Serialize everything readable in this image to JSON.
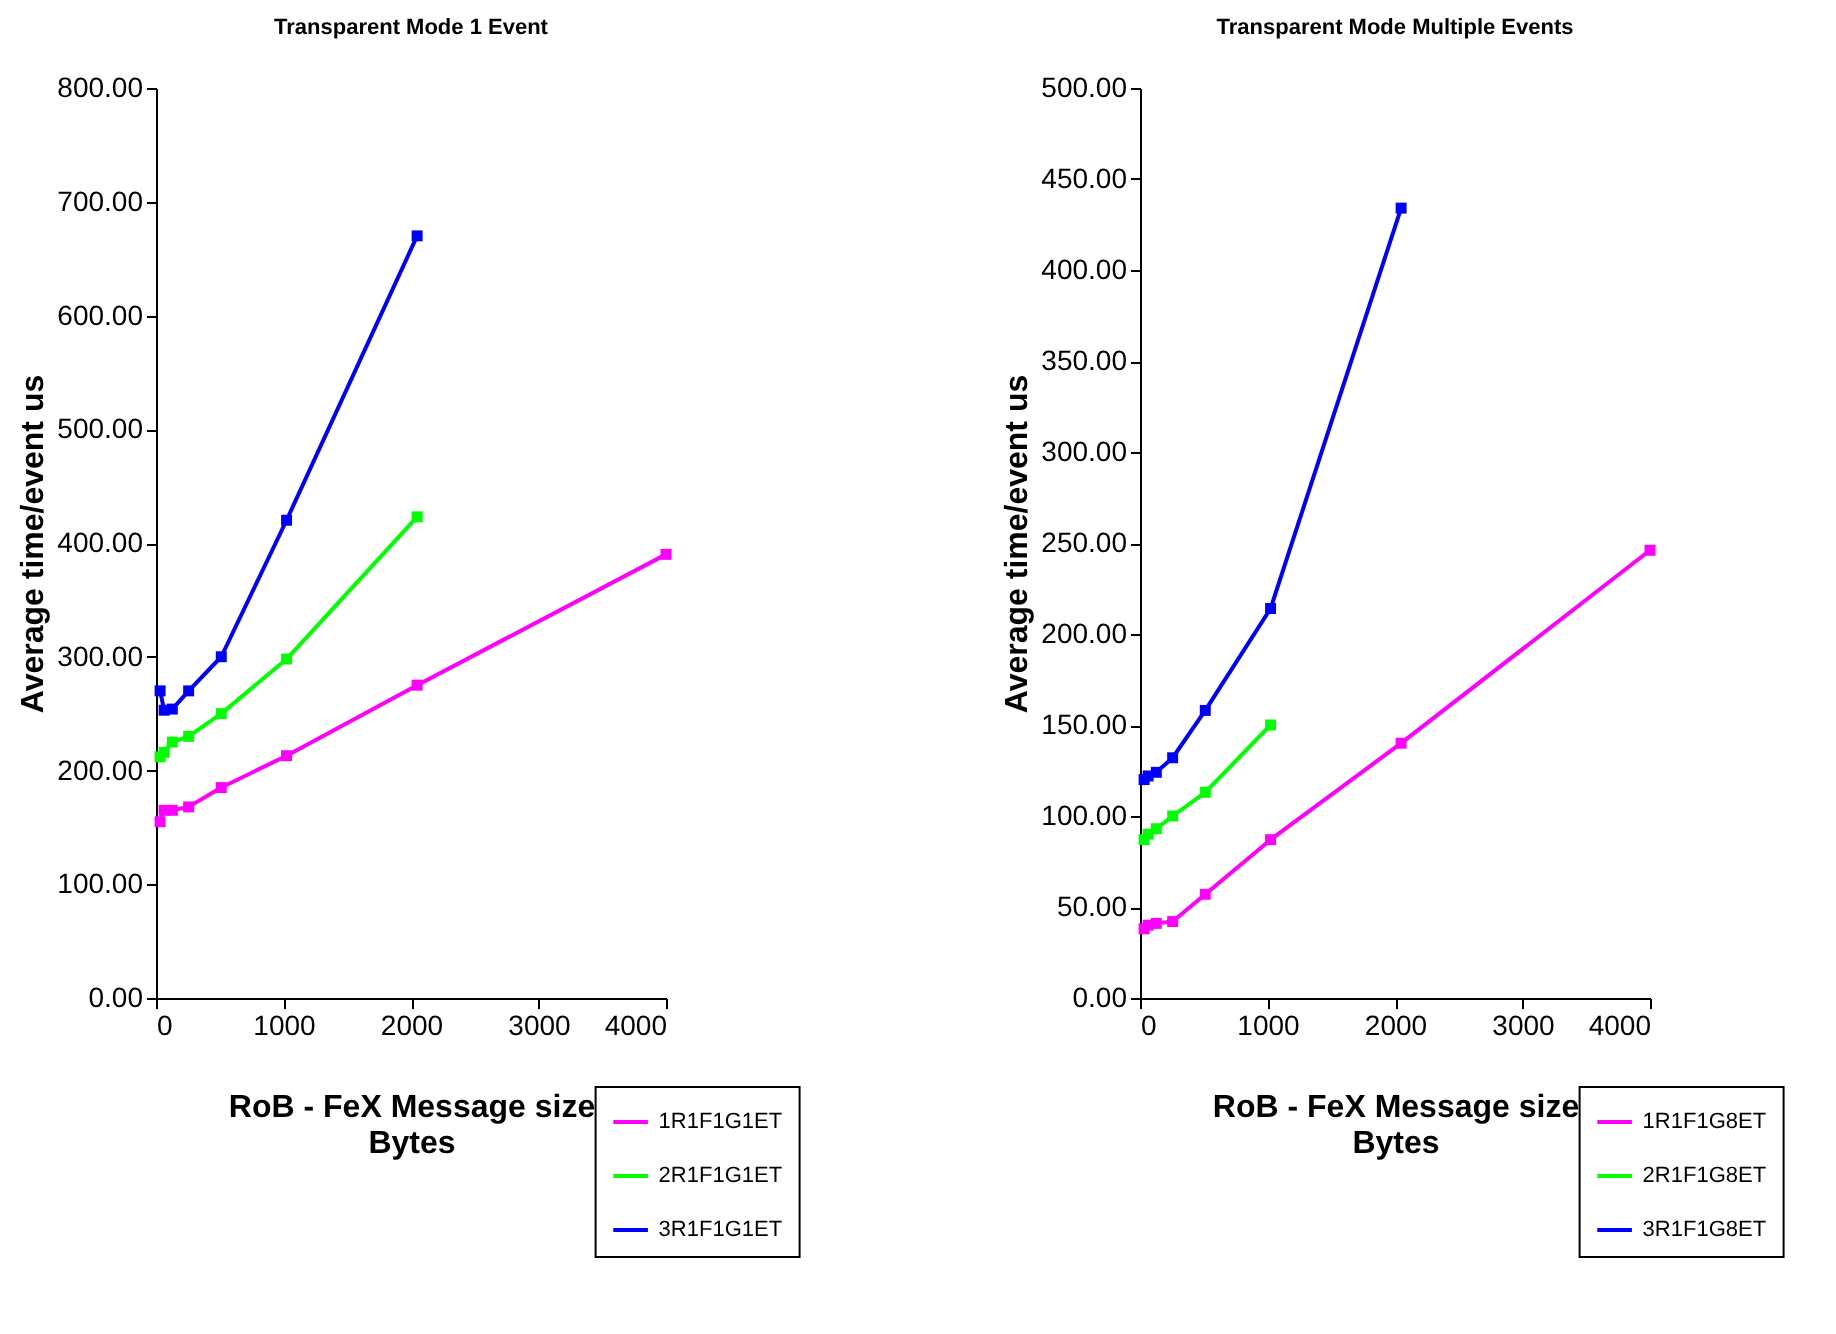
{
  "chart_data": [
    {
      "type": "line",
      "title": "Transparent Mode 1 Event",
      "xlabel": "RoB - FeX Message size\nBytes",
      "ylabel": "Average time/event us",
      "marker": "square",
      "line_style": "solid",
      "grid": false,
      "legend": "bottom right",
      "xlim": [
        0,
        4000
      ],
      "xticks": [
        0,
        1000,
        2000,
        3000,
        4000
      ],
      "ylim": [
        0,
        800
      ],
      "yticks": [
        {
          "value": 0,
          "label": "0.00"
        },
        {
          "value": 100,
          "label": "100.00"
        },
        {
          "value": 200,
          "label": "200.00"
        },
        {
          "value": 300,
          "label": "300.00"
        },
        {
          "value": 400,
          "label": "400.00"
        },
        {
          "value": 500,
          "label": "500.00"
        },
        {
          "value": 600,
          "label": "600.00"
        },
        {
          "value": 700,
          "label": "700.00"
        },
        {
          "value": 800,
          "label": "800.00"
        }
      ],
      "series": [
        {
          "name": "1R1F1G1ET",
          "color": "#ff00ff",
          "x": [
            32,
            64,
            128,
            256,
            512,
            1024,
            2048,
            4000
          ],
          "values": [
            155,
            165,
            165,
            168,
            185,
            213,
            275,
            390
          ]
        },
        {
          "name": "2R1F1G1ET",
          "color": "#00ff00",
          "x": [
            32,
            64,
            128,
            256,
            512,
            1024,
            2048
          ],
          "values": [
            212,
            216,
            225,
            230,
            250,
            298,
            423
          ]
        },
        {
          "name": "3R1F1G1ET",
          "color": "#0000ff",
          "x": [
            32,
            64,
            128,
            256,
            512,
            1024,
            2048
          ],
          "values": [
            270,
            253,
            254,
            270,
            300,
            420,
            670
          ]
        }
      ]
    },
    {
      "type": "line",
      "title": "Transparent Mode Multiple Events",
      "xlabel": "RoB - FeX Message size\nBytes",
      "ylabel": "Average time/event us",
      "marker": "square",
      "line_style": "solid",
      "grid": false,
      "legend": "bottom right",
      "xlim": [
        0,
        4000
      ],
      "xticks": [
        0,
        1000,
        2000,
        3000,
        4000
      ],
      "ylim": [
        0,
        500
      ],
      "yticks": [
        {
          "value": 0,
          "label": "0.00"
        },
        {
          "value": 50,
          "label": "50.00"
        },
        {
          "value": 100,
          "label": "100.00"
        },
        {
          "value": 150,
          "label": "150.00"
        },
        {
          "value": 200,
          "label": "200.00"
        },
        {
          "value": 250,
          "label": "250.00"
        },
        {
          "value": 300,
          "label": "300.00"
        },
        {
          "value": 350,
          "label": "350.00"
        },
        {
          "value": 400,
          "label": "400.00"
        },
        {
          "value": 450,
          "label": "450.00"
        },
        {
          "value": 500,
          "label": "500.00"
        }
      ],
      "series": [
        {
          "name": "1R1F1G8ET",
          "color": "#ff00ff",
          "x": [
            32,
            64,
            128,
            256,
            512,
            1024,
            2048,
            4000
          ],
          "values": [
            38,
            40,
            41,
            42,
            57,
            87,
            140,
            246
          ]
        },
        {
          "name": "2R1F1G8ET",
          "color": "#00ff00",
          "x": [
            32,
            64,
            128,
            256,
            512,
            1024
          ],
          "values": [
            87,
            90,
            93,
            100,
            113,
            150
          ]
        },
        {
          "name": "3R1F1G8ET",
          "color": "#0000ff",
          "x": [
            32,
            64,
            128,
            256,
            512,
            1024,
            2048
          ],
          "values": [
            120,
            122,
            124,
            132,
            158,
            214,
            434
          ]
        }
      ]
    }
  ]
}
